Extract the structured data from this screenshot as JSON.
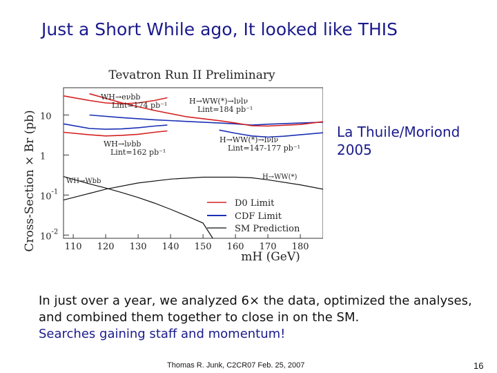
{
  "slide": {
    "title": "Just a Short While ago, It looked like THIS",
    "side_note_lines": [
      "La Thuile/Moriond",
      "2005"
    ],
    "body_line1": "In just over a year, we analyzed 6× the data, optimized the analyses,",
    "body_line2": "and combined them together to close in on the SM.",
    "body_line3": "Searches gaining staff and momentum!",
    "footer": "Thomas R. Junk, C2CR07 Feb. 25, 2007",
    "page_number": "16"
  },
  "colors": {
    "title": "#1a1a8c",
    "d0": "#d42020",
    "cdf": "#1a2fb5",
    "sm": "#111111"
  },
  "chart_data": {
    "type": "line",
    "title": "Tevatron Run II Preliminary",
    "xlabel": "mH (GeV)",
    "ylabel": "Cross-Section × Br (pb)",
    "x_scale": "linear",
    "y_scale": "log",
    "xlim": [
      107,
      187
    ],
    "ylim": [
      0.0083,
      48
    ],
    "x_ticks": [
      "110",
      "120",
      "130",
      "140",
      "150",
      "160",
      "170",
      "180"
    ],
    "y_ticks": [
      {
        "value": 10,
        "base": "10",
        "exp": ""
      },
      {
        "value": 1,
        "base": "1",
        "exp": ""
      },
      {
        "value": 0.1,
        "base": "10",
        "exp": "-1"
      },
      {
        "value": 0.01,
        "base": "10",
        "exp": "-2"
      }
    ],
    "legend": {
      "placement": "bottom-right",
      "entries": [
        {
          "label": "D0 Limit",
          "color": "#d42020"
        },
        {
          "label": "CDF Limit",
          "color": "#1a2fb5"
        },
        {
          "label": "SM Prediction",
          "color": "#111111"
        }
      ]
    },
    "series": [
      {
        "key": "d0_wh_evbb",
        "color": "#d42020",
        "width": 1.6,
        "points": [
          [
            107,
            30
          ],
          [
            115,
            23
          ],
          [
            120,
            20
          ],
          [
            125,
            19
          ],
          [
            130,
            20
          ],
          [
            135,
            23
          ],
          [
            139,
            27
          ]
        ]
      },
      {
        "key": "d0_wh_lnubb",
        "color": "#d42020",
        "width": 1.6,
        "points": [
          [
            107,
            3.7
          ],
          [
            115,
            3.2
          ],
          [
            120,
            3.0
          ],
          [
            125,
            3.1
          ],
          [
            130,
            3.3
          ],
          [
            135,
            3.7
          ],
          [
            139,
            4.0
          ]
        ]
      },
      {
        "key": "cdf_wh_lnubb",
        "color": "#1a2fb5",
        "width": 1.6,
        "points": [
          [
            107,
            6.0
          ],
          [
            115,
            4.6
          ],
          [
            120,
            4.4
          ],
          [
            125,
            4.5
          ],
          [
            130,
            4.8
          ],
          [
            135,
            5.3
          ],
          [
            139,
            5.6
          ]
        ]
      },
      {
        "key": "cdf_hww_184",
        "color": "#1a2fb5",
        "width": 1.6,
        "points": [
          [
            115,
            10
          ],
          [
            125,
            8.6
          ],
          [
            135,
            7.6
          ],
          [
            145,
            6.9
          ],
          [
            155,
            6.3
          ],
          [
            160,
            6.0
          ],
          [
            165,
            5.6
          ],
          [
            170,
            5.9
          ],
          [
            180,
            6.3
          ],
          [
            187,
            6.6
          ]
        ]
      },
      {
        "key": "d0_hww",
        "color": "#d42020",
        "width": 1.6,
        "points": [
          [
            115,
            34
          ],
          [
            125,
            20
          ],
          [
            135,
            13
          ],
          [
            145,
            9
          ],
          [
            155,
            7.2
          ],
          [
            160,
            6.3
          ],
          [
            165,
            5.4
          ],
          [
            170,
            5.3
          ],
          [
            180,
            5.8
          ],
          [
            187,
            6.8
          ]
        ]
      },
      {
        "key": "cdf_hww_147",
        "color": "#1a2fb5",
        "width": 1.6,
        "points": [
          [
            155,
            4.2
          ],
          [
            160,
            3.5
          ],
          [
            165,
            3.0
          ],
          [
            170,
            2.8
          ],
          [
            175,
            2.95
          ],
          [
            180,
            3.2
          ],
          [
            187,
            3.6
          ]
        ]
      },
      {
        "key": "sm_wh_wbb",
        "color": "#111111",
        "width": 1.2,
        "points": [
          [
            107,
            0.29
          ],
          [
            115,
            0.19
          ],
          [
            120,
            0.15
          ],
          [
            125,
            0.115
          ],
          [
            130,
            0.087
          ],
          [
            135,
            0.063
          ],
          [
            140,
            0.044
          ],
          [
            145,
            0.03
          ],
          [
            150,
            0.02
          ],
          [
            153,
            0.0083
          ]
        ]
      },
      {
        "key": "sm_h_ww",
        "color": "#111111",
        "width": 1.2,
        "points": [
          [
            107,
            0.075
          ],
          [
            115,
            0.11
          ],
          [
            120,
            0.14
          ],
          [
            130,
            0.2
          ],
          [
            140,
            0.25
          ],
          [
            150,
            0.28
          ],
          [
            160,
            0.28
          ],
          [
            165,
            0.27
          ],
          [
            170,
            0.24
          ],
          [
            180,
            0.18
          ],
          [
            187,
            0.14
          ]
        ]
      }
    ],
    "annotations": {
      "wh_evbb": "WH→eνbb",
      "wh_evbb_lumi": "Lint=174 pb⁻¹",
      "hww_lvlv_184": "H→WW(*)→lνlν",
      "hww_lvlv_184_lumi": "Lint=184 pb⁻¹",
      "hww_lvlv_147": "H→WW(*)→lνlν",
      "hww_lvlv_147_lumi": "Lint=147-177 pb⁻¹",
      "wh_lvbb": "WH→lνbb",
      "wh_lvbb_lumi": "Lint=162 pb⁻¹",
      "wh_wbb": "WH→Wbb",
      "h_ww": "H→WW(*)"
    }
  }
}
